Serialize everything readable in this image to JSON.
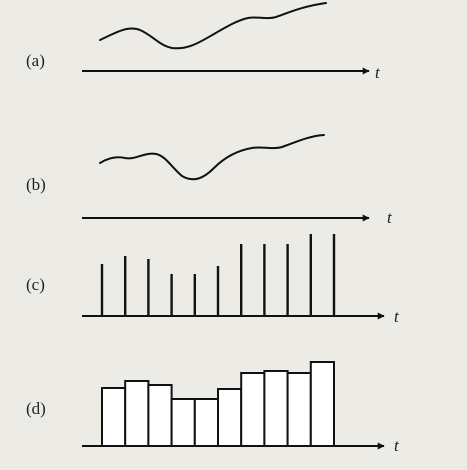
{
  "panels": [
    {
      "label": "(a)",
      "axis_label": "t"
    },
    {
      "label": "(b)",
      "axis_label": "t"
    },
    {
      "label": "(c)",
      "axis_label": "t",
      "values": [
        52,
        60,
        57,
        42,
        42,
        50,
        72,
        72,
        72,
        82,
        82
      ]
    },
    {
      "label": "(d)",
      "axis_label": "t",
      "values": [
        58,
        65,
        61,
        47,
        47,
        57,
        73,
        75,
        73,
        84
      ]
    }
  ],
  "colors": {
    "background": "#ecebe6",
    "ink": "#111111",
    "bar_fill": "#ffffff"
  }
}
